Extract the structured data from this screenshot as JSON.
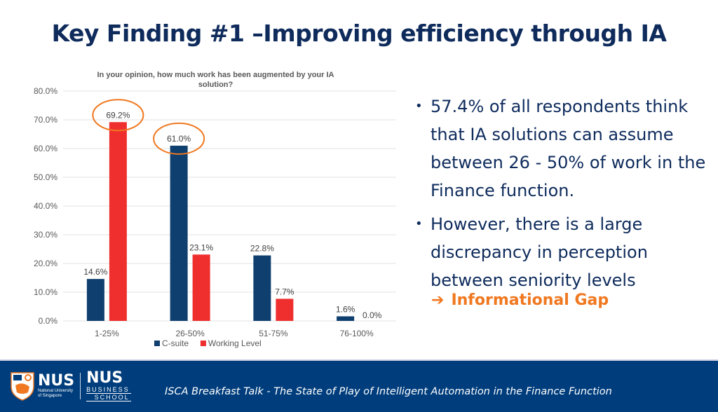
{
  "slide": {
    "title": "Key Finding #1 –Improving efficiency through IA",
    "bullets": [
      "57.4% of all respondents think that IA solutions can assume between 26 - 50% of work in the Finance function.",
      "However, there is a large discrepancy in perception between seniority levels"
    ],
    "callout": {
      "arrow": "➔",
      "text": "Informational Gap"
    },
    "colors": {
      "title": "#0e2b5c",
      "accent": "#f07820",
      "footer": "#003d7c"
    }
  },
  "footer": {
    "logo_nus": "NUS",
    "logo_nus_sub1": "National University",
    "logo_nus_sub2": "of Singapore",
    "logo_biz": "NUS",
    "logo_biz_sub1": "BUSINESS",
    "logo_biz_sub2": "SCHOOL",
    "text": "ISCA Breakfast Talk - The State of Play of Intelligent Automation in the Finance Function"
  },
  "chart_data": {
    "type": "bar",
    "title": "In your opinion, how much work has been augmented by your IA solution?",
    "title_lines": [
      "In your opinion, how much work has been augmented by your IA",
      "solution?"
    ],
    "categories": [
      "1-25%",
      "26-50%",
      "51-75%",
      "76-100%"
    ],
    "series": [
      {
        "name": "C-suite",
        "color": "#0f3f6e",
        "values": [
          14.6,
          61.0,
          22.8,
          1.6
        ],
        "labels": [
          "14.6%",
          "61.0%",
          "22.8%",
          "1.6%"
        ]
      },
      {
        "name": "Working Level",
        "color": "#ef2e2e",
        "values": [
          69.2,
          23.1,
          7.7,
          0.0
        ],
        "labels": [
          "69.2%",
          "23.1%",
          "7.7%",
          "0.0%"
        ]
      }
    ],
    "ylim": [
      0,
      80
    ],
    "yticks": [
      "0.0%",
      "10.0%",
      "20.0%",
      "30.0%",
      "40.0%",
      "50.0%",
      "60.0%",
      "70.0%",
      "80.0%"
    ],
    "xlabel": "",
    "ylabel": "",
    "grid": true,
    "legend": "bottom",
    "highlights": [
      {
        "series": 1,
        "category": 0,
        "color": "#f07820"
      },
      {
        "series": 0,
        "category": 1,
        "color": "#f07820"
      }
    ]
  }
}
